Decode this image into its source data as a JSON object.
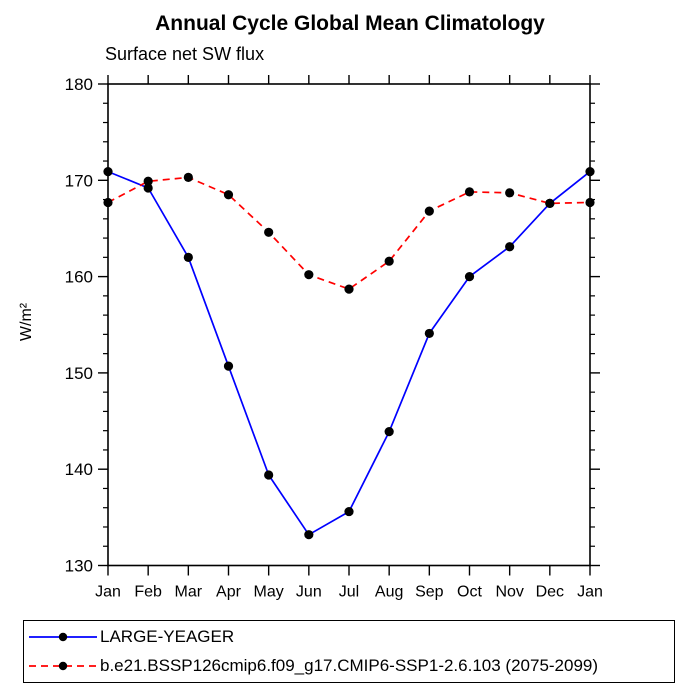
{
  "page": {
    "background": "#ffffff",
    "text_color": "#000000"
  },
  "chart_data": {
    "type": "line",
    "title": "Annual Cycle Global Mean Climatology",
    "subtitle": "Surface net SW flux",
    "ylabel": "W/m²",
    "xlabel": "",
    "categories": [
      "Jan",
      "Feb",
      "Mar",
      "Apr",
      "May",
      "Jun",
      "Jul",
      "Aug",
      "Sep",
      "Oct",
      "Nov",
      "Dec",
      "Jan"
    ],
    "ylim": [
      130,
      180
    ],
    "ytick_major_step": 10,
    "ytick_minor_step": 2,
    "grid": false,
    "frame": "box-with-outward-ticks",
    "legend_position": "bottom-box",
    "marker": "filled-circle",
    "marker_color": "#000000",
    "series": [
      {
        "name": "LARGE-YEAGER",
        "color": "#0000ff",
        "line_style": "solid",
        "values": [
          170.9,
          169.2,
          162.0,
          150.7,
          139.4,
          133.2,
          135.6,
          143.9,
          154.1,
          160.0,
          163.1,
          167.6,
          170.9
        ]
      },
      {
        "name": "b.e21.BSSP126cmip6.f09_g17.CMIP6-SSP1-2.6.103 (2075-2099)",
        "color": "#ff0000",
        "line_style": "dashed",
        "values": [
          167.7,
          169.9,
          170.3,
          168.5,
          164.6,
          160.2,
          158.7,
          161.6,
          166.8,
          168.8,
          168.7,
          167.6,
          167.7
        ]
      }
    ]
  }
}
